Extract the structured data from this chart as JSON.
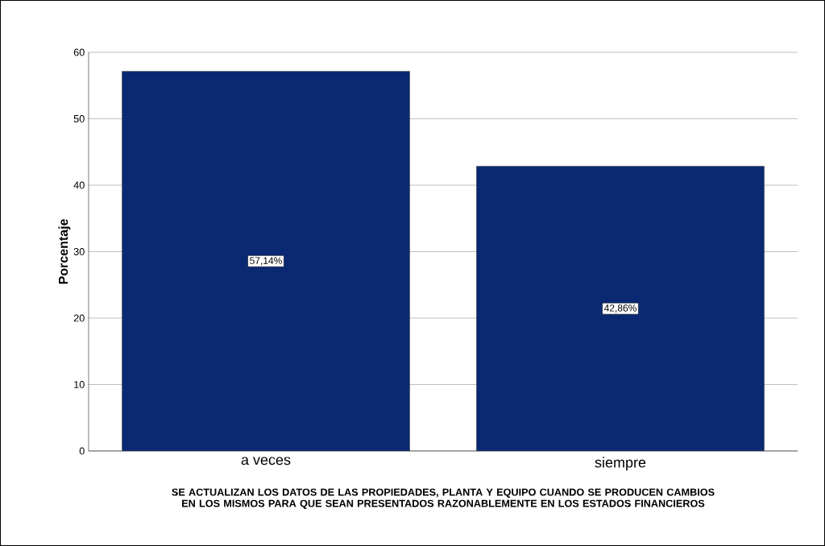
{
  "chart_data": {
    "type": "bar",
    "xlabel": "SE ACTUALIZAN LOS DATOS DE LAS PROPIEDADES, PLANTA Y EQUIPO CUANDO SE PRODUCEN CAMBIOS EN LOS MISMOS PARA QUE SEAN PRESENTADOS RAZONABLEMENTE EN LOS ESTADOS FINANCIEROS",
    "ylabel": "Porcentaje",
    "categories": [
      "a veces",
      "siempre"
    ],
    "values": [
      57.14,
      42.86
    ],
    "value_labels": [
      "57,14%",
      "42,86%"
    ],
    "color": "#0b2873",
    "ylim": [
      0,
      60
    ],
    "yticks": [
      0,
      10,
      20,
      30,
      40,
      50,
      60
    ],
    "grid": "y"
  }
}
